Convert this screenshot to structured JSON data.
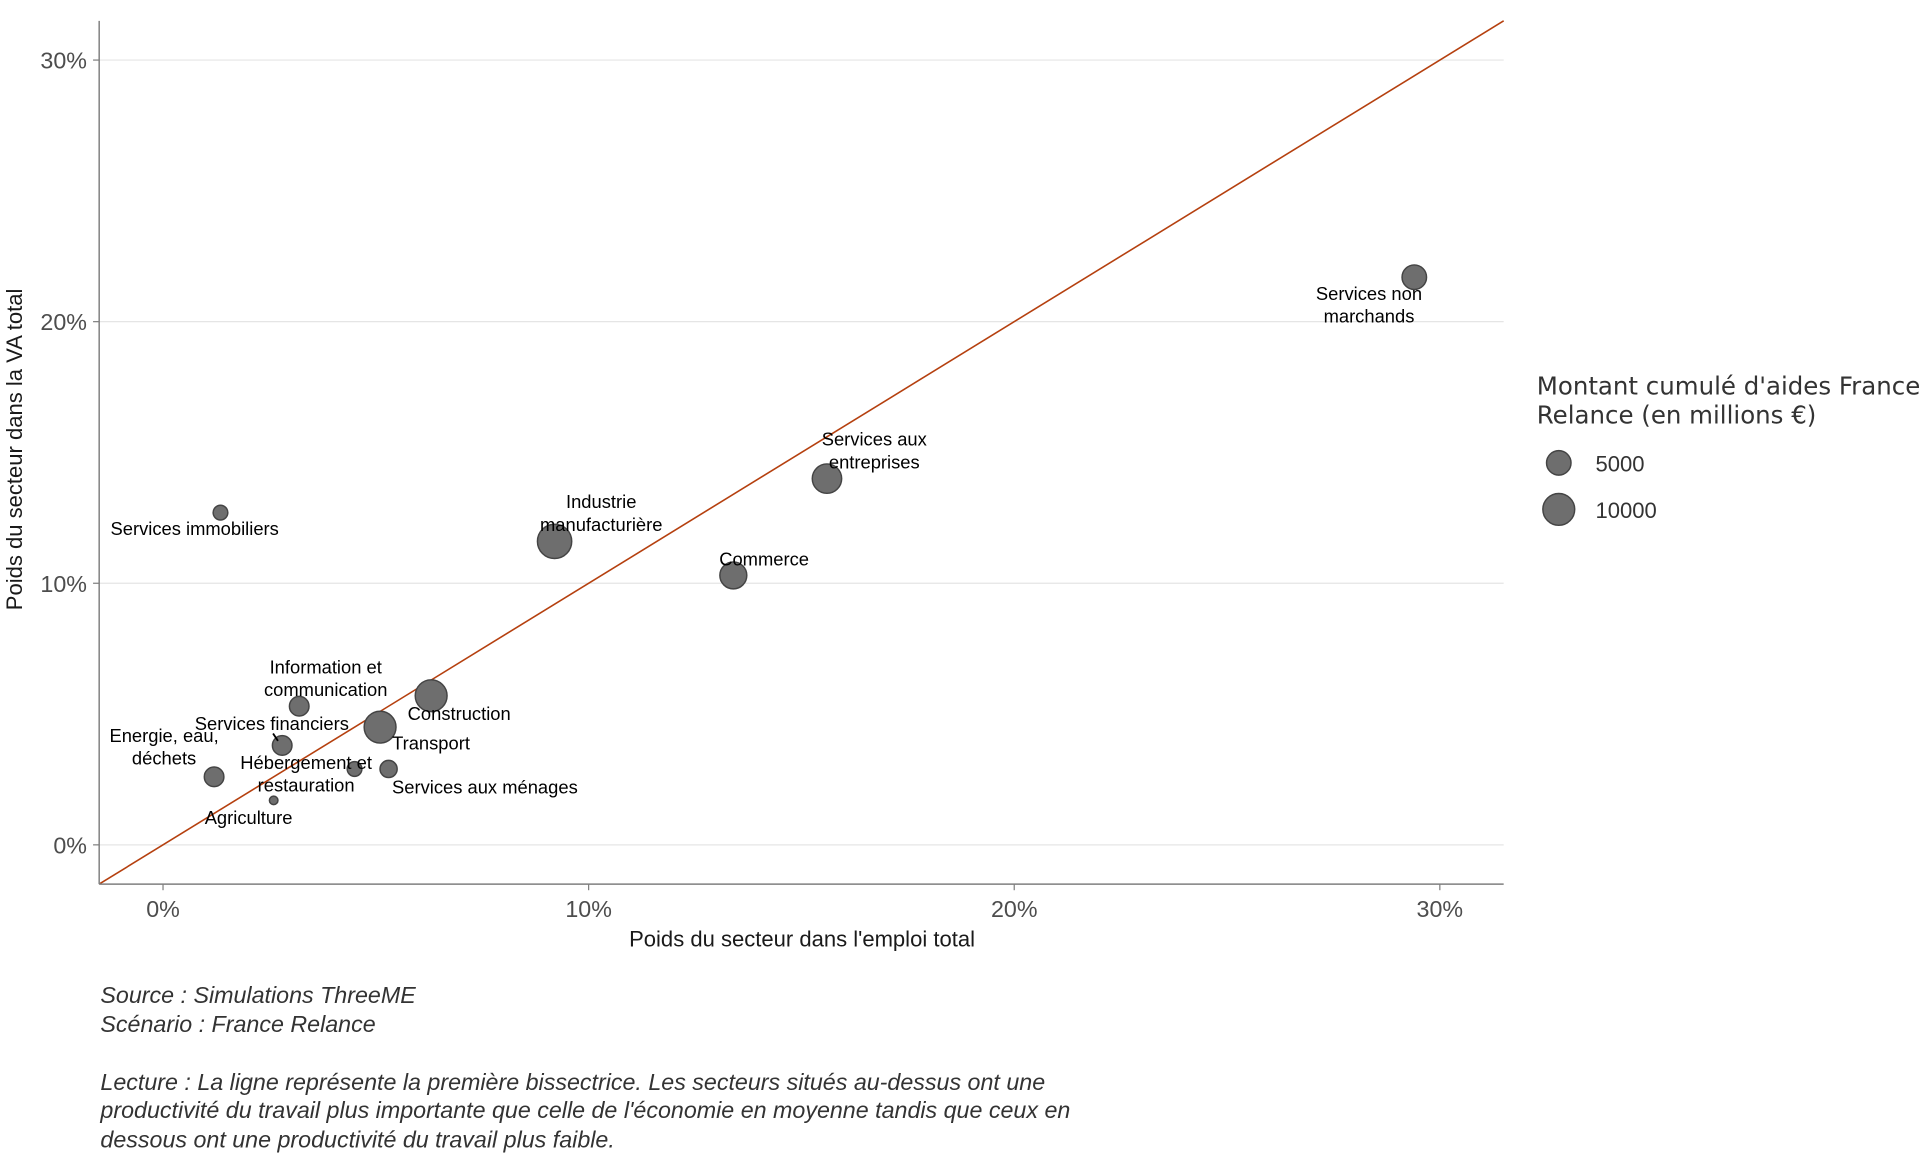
{
  "chart_data": {
    "type": "scatter",
    "xlabel": "Poids du secteur dans l'emploi total",
    "ylabel": "Poids du secteur dans la VA total",
    "xlim": [
      -1.5,
      31.5
    ],
    "ylim": [
      -1.5,
      31.5
    ],
    "x_ticks": [
      0,
      10,
      20,
      30
    ],
    "y_ticks": [
      0,
      10,
      20,
      30
    ],
    "x_tick_labels": [
      "0%",
      "10%",
      "20%",
      "30%"
    ],
    "y_tick_labels": [
      "0%",
      "10%",
      "20%",
      "30%"
    ],
    "grid": "horizontal major",
    "reference_line": {
      "type": "y=x",
      "label": "première bissectrice",
      "color": "#b5400f"
    },
    "size_legend": {
      "title_lines": [
        "Montant cumulé d'aides France",
        "Relance (en millions €)"
      ],
      "entries": [
        {
          "value": 5000,
          "label": "5000"
        },
        {
          "value": 10000,
          "label": "10000"
        }
      ],
      "placement": "right"
    },
    "points": [
      {
        "name": "Services non marchands",
        "label_lines": [
          "Services non",
          "marchands"
        ],
        "x": 29.4,
        "y": 21.7,
        "size": 5000
      },
      {
        "name": "Services aux entreprises",
        "label_lines": [
          "Services aux",
          "entreprises"
        ],
        "x": 15.6,
        "y": 14.0,
        "size": 7200
      },
      {
        "name": "Commerce",
        "label_lines": [
          "Commerce"
        ],
        "x": 13.4,
        "y": 10.3,
        "size": 6050
      },
      {
        "name": "Industrie manufacturière",
        "label_lines": [
          "Industrie",
          "manufacturière"
        ],
        "x": 9.2,
        "y": 11.6,
        "size": 9800
      },
      {
        "name": "Services immobiliers",
        "label_lines": [
          "Services immobiliers"
        ],
        "x": 1.35,
        "y": 12.7,
        "size": 1800
      },
      {
        "name": "Construction",
        "label_lines": [
          "Construction"
        ],
        "x": 6.3,
        "y": 5.7,
        "size": 8450
      },
      {
        "name": "Transport",
        "label_lines": [
          "Transport"
        ],
        "x": 5.1,
        "y": 4.5,
        "size": 8450
      },
      {
        "name": "Information et communication",
        "label_lines": [
          "Information et",
          "communication"
        ],
        "x": 3.2,
        "y": 5.3,
        "size": 3200
      },
      {
        "name": "Services financiers",
        "label_lines": [
          "Services financiers"
        ],
        "x": 2.8,
        "y": 3.8,
        "size": 3200
      },
      {
        "name": "Energie, eau, déchets",
        "label_lines": [
          "Energie, eau,",
          "déchets"
        ],
        "x": 1.2,
        "y": 2.6,
        "size": 3200
      },
      {
        "name": "Hébergement et restauration",
        "label_lines": [
          "Hébergement et",
          "restauration"
        ],
        "x": 4.5,
        "y": 2.9,
        "size": 1800
      },
      {
        "name": "Services aux ménages",
        "label_lines": [
          "Services aux ménages"
        ],
        "x": 5.3,
        "y": 2.9,
        "size": 2450
      },
      {
        "name": "Agriculture",
        "label_lines": [
          "Agriculture"
        ],
        "x": 2.6,
        "y": 1.7,
        "size": 600
      }
    ],
    "colors": {
      "point_fill": "#6e6e6e",
      "point_stroke": "#444444",
      "line": "#b5400f",
      "grid": "#e5e5e5",
      "axis": "#7f7f7f"
    }
  },
  "caption": {
    "source": "Source : Simulations ThreeME",
    "scenario": "Scénario : France Relance",
    "reading_lines": [
      "Lecture : La ligne représente la première bissectrice. Les secteurs situés au-dessus ont une",
      "productivité du travail plus importante que celle de l'économie en moyenne tandis que ceux en",
      "dessous ont une productivité du travail plus faible."
    ]
  }
}
